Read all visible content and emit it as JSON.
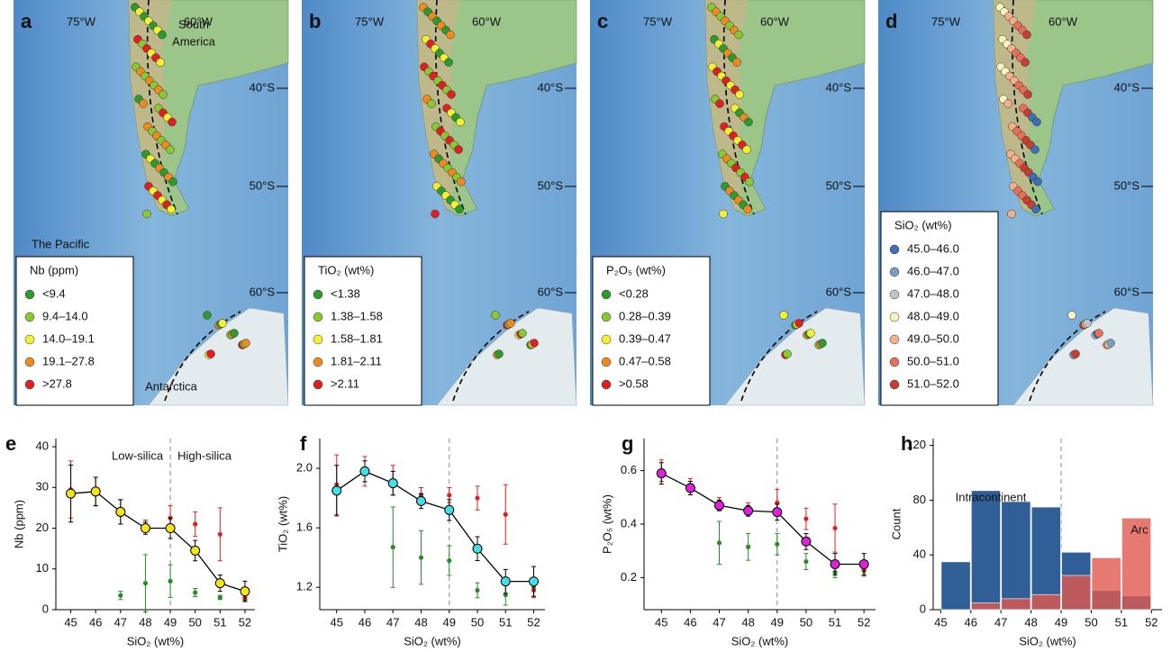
{
  "maps": [
    {
      "panel": "a",
      "legend_title": "Nb (ppm)",
      "place_names": [
        "South",
        "America",
        "The Pacific",
        "Antarctica"
      ],
      "legend": [
        {
          "label": "<9.4",
          "color": "#2e9a2e"
        },
        {
          "label": "9.4–14.0",
          "color": "#8ac832"
        },
        {
          "label": "14.0–19.1",
          "color": "#f5f032"
        },
        {
          "label": "19.1–27.8",
          "color": "#f08a1e"
        },
        {
          "label": ">27.8",
          "color": "#e02020"
        }
      ]
    },
    {
      "panel": "b",
      "legend_title": "TiO₂ (wt%)",
      "legend": [
        {
          "label": "<1.38",
          "color": "#2e9a2e"
        },
        {
          "label": "1.38–1.58",
          "color": "#8ac832"
        },
        {
          "label": "1.58–1.81",
          "color": "#f5f032"
        },
        {
          "label": "1.81–2.11",
          "color": "#f08a1e"
        },
        {
          "label": ">2.11",
          "color": "#e02020"
        }
      ]
    },
    {
      "panel": "c",
      "legend_title": "P₂O₅ (wt%)",
      "legend": [
        {
          "label": "<0.28",
          "color": "#2e9a2e"
        },
        {
          "label": "0.28–0.39",
          "color": "#8ac832"
        },
        {
          "label": "0.39–0.47",
          "color": "#f5f032"
        },
        {
          "label": "0.47–0.58",
          "color": "#f08a1e"
        },
        {
          "label": ">0.58",
          "color": "#e02020"
        }
      ]
    },
    {
      "panel": "d",
      "legend_title": "SiO₂ (wt%)",
      "legend": [
        {
          "label": "45.0–46.0",
          "color": "#3e6fb5"
        },
        {
          "label": "46.0–47.0",
          "color": "#7f9bc0"
        },
        {
          "label": "47.0–48.0",
          "color": "#c0c4c4"
        },
        {
          "label": "48.0–49.0",
          "color": "#f8f4c0"
        },
        {
          "label": "49.0–50.0",
          "color": "#f4b088"
        },
        {
          "label": "50.0–51.0",
          "color": "#e8705a"
        },
        {
          "label": "51.0–52.0",
          "color": "#c83c32"
        }
      ]
    }
  ],
  "map_labels": {
    "lon": [
      "75°W",
      "60°W"
    ],
    "lat": [
      "40°S",
      "50°S",
      "60°S"
    ]
  },
  "chart_data": [
    {
      "type": "line",
      "panel": "e",
      "x_label": "SiO₂ (wt%)",
      "y_label": "Nb (ppm)",
      "annotations": [
        "Low-silica",
        "High-silica"
      ],
      "divider": 49,
      "x": [
        45,
        46,
        47,
        48,
        49,
        50,
        51,
        52
      ],
      "xlim": [
        44.4,
        52.4
      ],
      "xticks": [
        45,
        46,
        47,
        48,
        49,
        50,
        51,
        52
      ],
      "ylim": [
        0,
        42
      ],
      "yticks": [
        0,
        10,
        20,
        30,
        40
      ],
      "series": [
        {
          "color": "#f5e61a",
          "connected": true,
          "values": [
            28.5,
            29,
            24,
            20,
            20,
            14.5,
            6.5,
            4.5
          ],
          "errors": [
            7,
            3.5,
            3,
            1.5,
            2.5,
            2.5,
            2,
            2.5
          ]
        },
        {
          "color": "#e02020",
          "values": [
            29.5,
            29,
            24,
            20.5,
            22.5,
            21,
            18.5,
            3
          ],
          "errors": [
            7,
            3.5,
            3,
            1.5,
            3,
            3,
            6.5,
            0.5
          ]
        },
        {
          "color": "#2a8a2a",
          "values": [
            null,
            null,
            3.5,
            6.5,
            7,
            4.2,
            3,
            2.5
          ],
          "errors": [
            null,
            null,
            1,
            7,
            4,
            1,
            0.5,
            0.5
          ]
        }
      ]
    },
    {
      "type": "line",
      "panel": "f",
      "x_label": "SiO₂ (wt%)",
      "y_label": "TiO₂ (wt%)",
      "divider": 49,
      "x": [
        45,
        46,
        47,
        48,
        49,
        50,
        51,
        52
      ],
      "xlim": [
        44.4,
        52.4
      ],
      "xticks": [
        45,
        46,
        47,
        48,
        49,
        50,
        51,
        52
      ],
      "ylim": [
        1.05,
        2.2
      ],
      "yticks": [
        {
          "value": 1.2,
          "label": "1.2"
        },
        {
          "value": 1.6,
          "label": "1.6"
        },
        {
          "value": 2.0,
          "label": "2.0"
        }
      ],
      "series": [
        {
          "color": "#3fe0e8",
          "connected": true,
          "values": [
            1.85,
            1.98,
            1.9,
            1.78,
            1.72,
            1.46,
            1.24,
            1.24
          ],
          "errors": [
            0.17,
            0.07,
            0.08,
            0.05,
            0.07,
            0.08,
            0.08,
            0.1
          ]
        },
        {
          "color": "#e02020",
          "values": [
            1.89,
            1.98,
            1.92,
            1.82,
            1.82,
            1.8,
            1.69,
            1.18
          ],
          "errors": [
            0.2,
            0.1,
            0.1,
            0.05,
            0.05,
            0.08,
            0.2,
            0.05
          ]
        },
        {
          "color": "#2a8a2a",
          "values": [
            null,
            null,
            1.47,
            1.4,
            1.38,
            1.18,
            1.15,
            1.2
          ],
          "errors": [
            null,
            null,
            0.27,
            0.18,
            0.1,
            0.05,
            0.07,
            0.06
          ]
        }
      ]
    },
    {
      "type": "line",
      "panel": "g",
      "x_label": "SiO₂ (wt%)",
      "y_label": "P₂O₅ (wt%)",
      "divider": 49,
      "x": [
        45,
        46,
        47,
        48,
        49,
        50,
        51,
        52
      ],
      "xlim": [
        44.4,
        52.4
      ],
      "xticks": [
        45,
        46,
        47,
        48,
        49,
        50,
        51,
        52
      ],
      "ylim": [
        0.08,
        0.72
      ],
      "yticks": [
        0.2,
        0.4,
        0.6
      ],
      "series": [
        {
          "color": "#e020e0",
          "connected": true,
          "values": [
            0.59,
            0.535,
            0.47,
            0.45,
            0.445,
            0.335,
            0.25,
            0.25
          ],
          "errors": [
            0.04,
            0.025,
            0.02,
            0.02,
            0.03,
            0.03,
            0.04,
            0.04
          ]
        },
        {
          "color": "#e02020",
          "values": [
            0.6,
            0.54,
            0.48,
            0.46,
            0.48,
            0.42,
            0.385,
            0.23
          ],
          "errors": [
            0.04,
            0.03,
            0.02,
            0.02,
            0.05,
            0.04,
            0.09,
            0.02
          ]
        },
        {
          "color": "#2a8a2a",
          "values": [
            null,
            null,
            0.33,
            0.315,
            0.325,
            0.26,
            0.22,
            0.225
          ],
          "errors": [
            null,
            null,
            0.08,
            0.05,
            0.04,
            0.03,
            0.02,
            0.02
          ]
        }
      ]
    },
    {
      "type": "histogram",
      "panel": "h",
      "x_label": "SiO₂ (wt%)",
      "y_label": "Count",
      "divider": 49,
      "bins": [
        45,
        46,
        47,
        48,
        49,
        50,
        51,
        52
      ],
      "xlim": [
        44.75,
        52.35
      ],
      "xticks": [
        45,
        46,
        47,
        48,
        49,
        50,
        51,
        52
      ],
      "ylim": [
        0,
        125
      ],
      "yticks": [
        0,
        40,
        80,
        120
      ],
      "series": [
        {
          "name": "Intracontinent",
          "color": "#2f5f96",
          "values": [
            35,
            87,
            79,
            75,
            42,
            14,
            10
          ]
        },
        {
          "name": "Arc",
          "color": "#e05a50",
          "values": [
            0,
            5,
            8,
            11,
            25,
            38,
            67
          ]
        }
      ]
    }
  ]
}
